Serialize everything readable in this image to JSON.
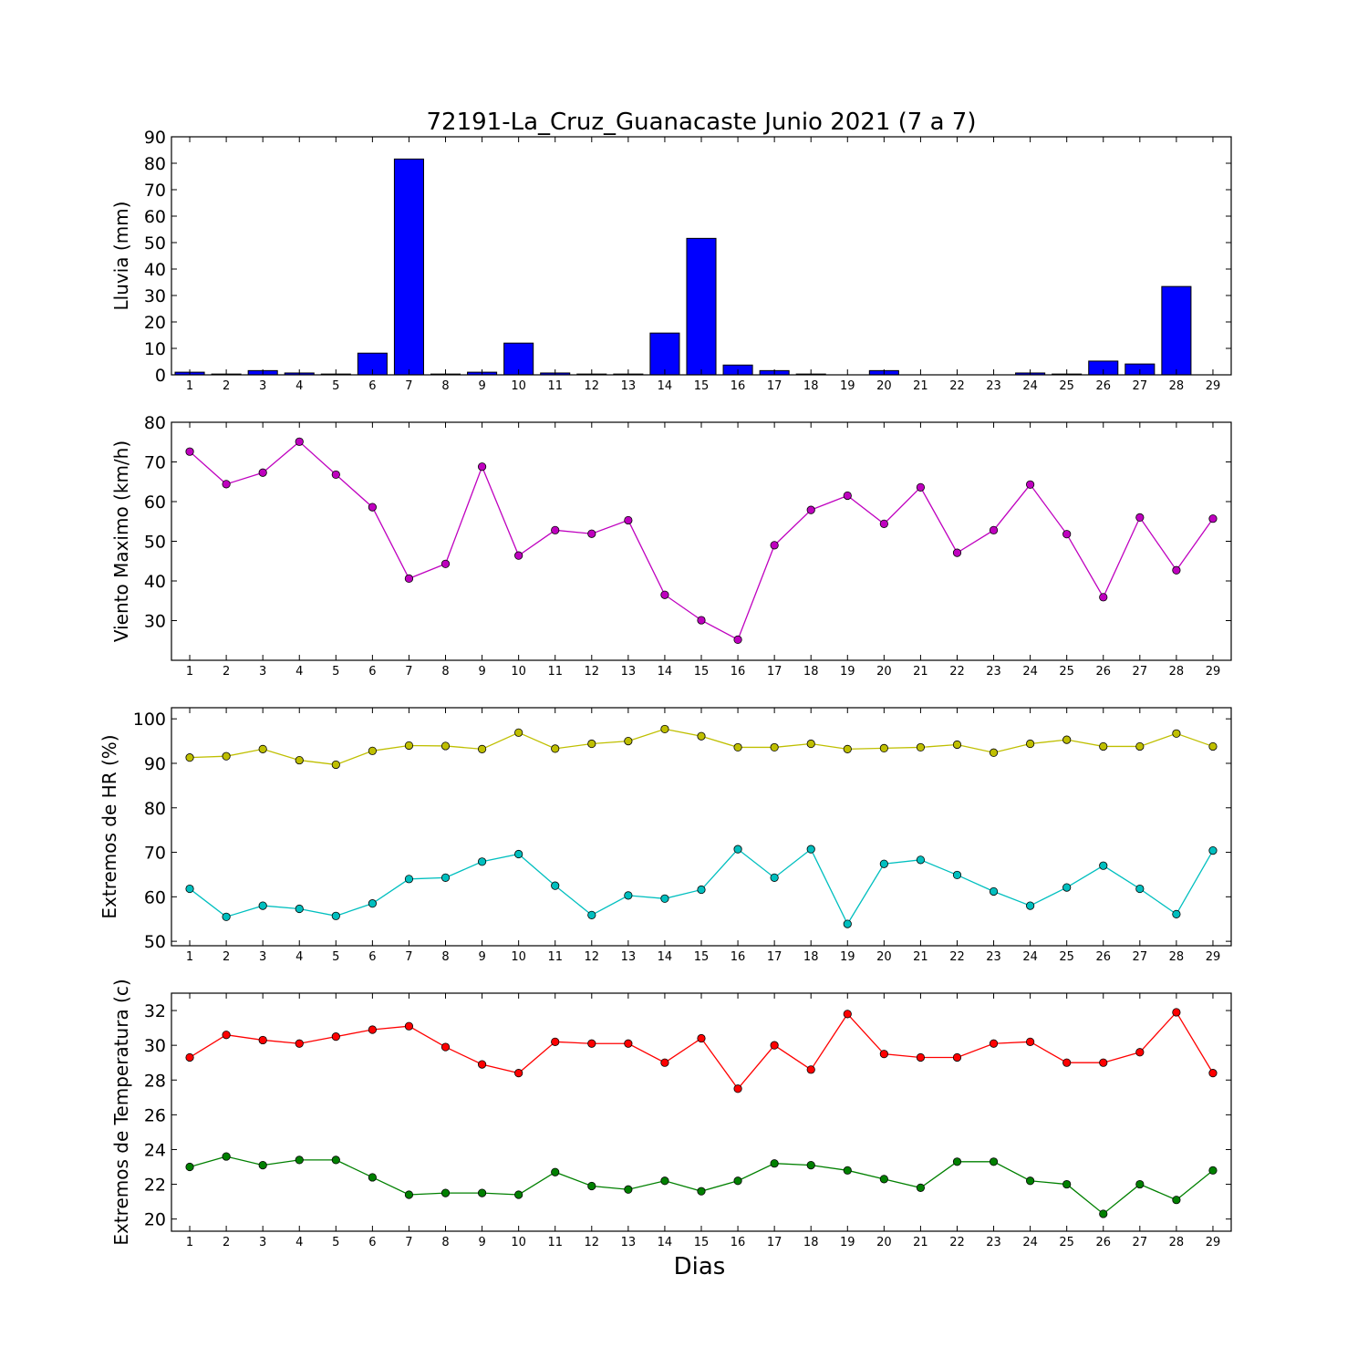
{
  "chart_data": [
    {
      "type": "bar",
      "title": "72191-La_Cruz_Guanacaste Junio 2021  (7 a 7)",
      "xlabel": "",
      "ylabel": "Lluvia (mm)",
      "ylim": [
        0,
        90
      ],
      "yticks": [
        0,
        10,
        20,
        30,
        40,
        50,
        60,
        70,
        80,
        90
      ],
      "x": [
        1,
        2,
        3,
        4,
        5,
        6,
        7,
        8,
        9,
        10,
        11,
        12,
        13,
        14,
        15,
        16,
        17,
        18,
        19,
        20,
        21,
        22,
        23,
        24,
        25,
        26,
        27,
        28,
        29
      ],
      "series": [
        {
          "color": "#0000ff",
          "values": [
            1.0,
            0.3,
            1.6,
            0.7,
            0.3,
            8.2,
            81.6,
            0.3,
            1.0,
            12.0,
            0.7,
            0.3,
            0.3,
            15.8,
            51.6,
            3.7,
            1.6,
            0.3,
            0.0,
            1.6,
            0.0,
            0.0,
            0.0,
            0.7,
            0.3,
            5.2,
            4.1,
            33.4,
            0.0
          ]
        }
      ],
      "grid": false
    },
    {
      "type": "line",
      "xlabel": "",
      "ylabel": "Viento Maximo (km/h)",
      "ylim": [
        20,
        80
      ],
      "yticks": [
        30,
        40,
        50,
        60,
        70,
        80
      ],
      "x": [
        1,
        2,
        3,
        4,
        5,
        6,
        7,
        8,
        9,
        10,
        11,
        12,
        13,
        14,
        15,
        16,
        17,
        18,
        19,
        20,
        21,
        22,
        23,
        24,
        25,
        26,
        27,
        28,
        29
      ],
      "series": [
        {
          "color": "#bf00bf",
          "values": [
            72.6,
            64.4,
            67.3,
            75.1,
            66.8,
            58.6,
            40.6,
            44.3,
            68.8,
            46.4,
            52.8,
            51.9,
            55.3,
            36.5,
            30.1,
            25.2,
            49.0,
            57.9,
            61.5,
            54.4,
            63.6,
            47.1,
            52.8,
            64.3,
            51.8,
            35.9,
            56.0,
            42.7,
            55.7
          ]
        }
      ],
      "grid": false
    },
    {
      "type": "line",
      "xlabel": "",
      "ylabel": "Extremos de HR (%)",
      "ylim": [
        49,
        102.5
      ],
      "yticks": [
        50,
        60,
        70,
        80,
        90,
        100
      ],
      "x": [
        1,
        2,
        3,
        4,
        5,
        6,
        7,
        8,
        9,
        10,
        11,
        12,
        13,
        14,
        15,
        16,
        17,
        18,
        19,
        20,
        21,
        22,
        23,
        24,
        25,
        26,
        27,
        28,
        29
      ],
      "series": [
        {
          "color": "#bfbf00",
          "values": [
            91.3,
            91.6,
            93.2,
            90.7,
            89.7,
            92.8,
            94.0,
            93.9,
            93.2,
            96.9,
            93.3,
            94.4,
            95.0,
            97.7,
            96.1,
            93.6,
            93.6,
            94.4,
            93.2,
            93.4,
            93.6,
            94.2,
            92.4,
            94.4,
            95.3,
            93.8,
            93.8,
            96.7,
            93.8
          ]
        },
        {
          "color": "#00bfbf",
          "values": [
            61.8,
            55.5,
            58.0,
            57.3,
            55.7,
            58.5,
            64.0,
            64.3,
            67.9,
            69.6,
            62.5,
            55.9,
            60.3,
            59.6,
            61.6,
            70.7,
            64.3,
            70.7,
            53.9,
            67.4,
            68.3,
            64.9,
            61.2,
            58.0,
            62.1,
            67.0,
            61.8,
            56.1,
            70.4
          ]
        }
      ],
      "grid": false
    },
    {
      "type": "line",
      "xlabel": "Dias",
      "ylabel": "Extremos de Temperatura (c)",
      "ylim": [
        19.3,
        33.0
      ],
      "yticks": [
        20,
        22,
        24,
        26,
        28,
        30,
        32
      ],
      "x": [
        1,
        2,
        3,
        4,
        5,
        6,
        7,
        8,
        9,
        10,
        11,
        12,
        13,
        14,
        15,
        16,
        17,
        18,
        19,
        20,
        21,
        22,
        23,
        24,
        25,
        26,
        27,
        28,
        29
      ],
      "series": [
        {
          "color": "#ff0000",
          "values": [
            29.3,
            30.6,
            30.3,
            30.1,
            30.5,
            30.9,
            31.1,
            29.9,
            28.9,
            28.4,
            30.2,
            30.1,
            30.1,
            29.0,
            30.4,
            27.5,
            30.0,
            28.6,
            31.8,
            29.5,
            29.3,
            29.3,
            30.1,
            30.2,
            29.0,
            29.0,
            29.6,
            31.9,
            28.4
          ]
        },
        {
          "color": "#008000",
          "values": [
            23.0,
            23.6,
            23.1,
            23.4,
            23.4,
            22.4,
            21.4,
            21.5,
            21.5,
            21.4,
            22.7,
            21.9,
            21.7,
            22.2,
            21.6,
            22.2,
            23.2,
            23.1,
            22.8,
            22.3,
            21.8,
            23.3,
            23.3,
            22.2,
            22.0,
            20.3,
            22.0,
            21.1,
            22.8
          ]
        }
      ],
      "grid": false
    }
  ]
}
